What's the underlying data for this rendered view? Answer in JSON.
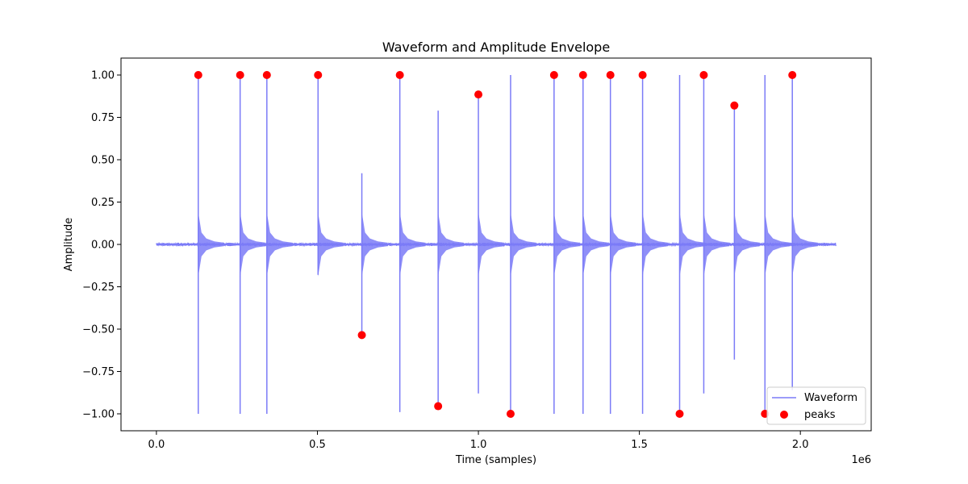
{
  "chart_data": {
    "type": "line",
    "title": "Waveform and Amplitude Envelope",
    "xlabel": "Time (samples)",
    "ylabel": "Amplitude",
    "x_offset_label": "1e6",
    "xlim": [
      -110000,
      2220000
    ],
    "ylim": [
      -1.1,
      1.1
    ],
    "x_ticks": [
      0.0,
      0.5,
      1.0,
      1.5,
      2.0
    ],
    "x_tick_labels": [
      "0.0",
      "0.5",
      "1.0",
      "1.5",
      "2.0"
    ],
    "y_ticks": [
      1.0,
      0.75,
      0.5,
      0.25,
      0.0,
      -0.25,
      -0.5,
      -0.75,
      -1.0
    ],
    "y_tick_labels": [
      "1.00",
      "0.75",
      "0.50",
      "0.25",
      "0.00",
      "−0.25",
      "−0.50",
      "−0.75",
      "−1.00"
    ],
    "grid": false,
    "legend": {
      "position": "lower-right",
      "entries": [
        {
          "label": "Waveform",
          "kind": "line",
          "color": "#7b7bf7"
        },
        {
          "label": "peaks",
          "kind": "marker",
          "color": "#ff0000"
        }
      ]
    },
    "series": [
      {
        "name": "Waveform",
        "color": "#7b7bf7",
        "x_range": [
          0,
          2110000
        ],
        "spikes": [
          {
            "x": 130000,
            "max": 1.0,
            "min": -1.0
          },
          {
            "x": 260000,
            "max": 1.0,
            "min": -1.0
          },
          {
            "x": 343000,
            "max": 1.0,
            "min": -1.0
          },
          {
            "x": 502000,
            "max": 1.0,
            "min": -0.18
          },
          {
            "x": 638000,
            "max": 0.42,
            "min": -0.54
          },
          {
            "x": 756000,
            "max": 1.0,
            "min": -0.99
          },
          {
            "x": 875000,
            "max": 0.79,
            "min": -0.96
          },
          {
            "x": 1000000,
            "max": 0.89,
            "min": -0.88
          },
          {
            "x": 1100000,
            "max": 1.0,
            "min": -1.0
          },
          {
            "x": 1235000,
            "max": 1.0,
            "min": -1.0
          },
          {
            "x": 1325000,
            "max": 1.0,
            "min": -1.0
          },
          {
            "x": 1410000,
            "max": 1.0,
            "min": -1.0
          },
          {
            "x": 1510000,
            "max": 1.0,
            "min": -1.0
          },
          {
            "x": 1625000,
            "max": 1.0,
            "min": -1.0
          },
          {
            "x": 1700000,
            "max": 1.0,
            "min": -0.88
          },
          {
            "x": 1795000,
            "max": 0.82,
            "min": -0.68
          },
          {
            "x": 1890000,
            "max": 1.0,
            "min": -1.0
          },
          {
            "x": 1975000,
            "max": 1.0,
            "min": -0.86
          }
        ]
      },
      {
        "name": "peaks",
        "type": "scatter",
        "color": "#ff0000",
        "points": [
          {
            "x": 130000,
            "y": 1.0
          },
          {
            "x": 260000,
            "y": 1.0
          },
          {
            "x": 343000,
            "y": 1.0
          },
          {
            "x": 502000,
            "y": 1.0
          },
          {
            "x": 638000,
            "y": -0.535
          },
          {
            "x": 756000,
            "y": 1.0
          },
          {
            "x": 875000,
            "y": -0.955
          },
          {
            "x": 1000000,
            "y": 0.885
          },
          {
            "x": 1100000,
            "y": -1.0
          },
          {
            "x": 1235000,
            "y": 1.0
          },
          {
            "x": 1325000,
            "y": 1.0
          },
          {
            "x": 1410000,
            "y": 1.0
          },
          {
            "x": 1510000,
            "y": 1.0
          },
          {
            "x": 1625000,
            "y": -1.0
          },
          {
            "x": 1700000,
            "y": 1.0
          },
          {
            "x": 1795000,
            "y": 0.82
          },
          {
            "x": 1890000,
            "y": -1.0
          },
          {
            "x": 1975000,
            "y": 1.0
          }
        ]
      }
    ]
  }
}
